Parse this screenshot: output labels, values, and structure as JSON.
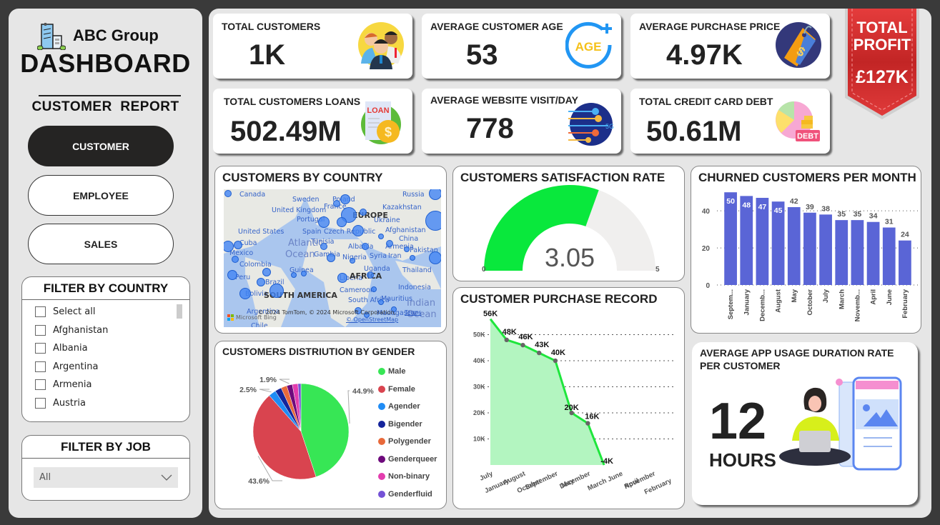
{
  "sidebar": {
    "brand": "ABC Group",
    "title": "DASHBOARD",
    "subtitle": "CUSTOMER  REPORT",
    "nav": [
      {
        "label": "CUSTOMER",
        "active": true
      },
      {
        "label": "EMPLOYEE",
        "active": false
      },
      {
        "label": "SALES",
        "active": false
      }
    ],
    "country_filter": {
      "title": "FILTER BY COUNTRY",
      "items": [
        "Select all",
        "Afghanistan",
        "Albania",
        "Argentina",
        "Armenia",
        "Austria"
      ]
    },
    "job_filter": {
      "title": "FILTER BY JOB",
      "selected": "All"
    }
  },
  "kpis": [
    {
      "label": "TOTAL CUSTOMERS",
      "value": "1K",
      "icon": "customers-group-icon"
    },
    {
      "label": "AVERAGE CUSTOMER AGE",
      "value": "53",
      "icon": "age-icon"
    },
    {
      "label": "AVERAGE PURCHASE PRICE",
      "value": "4.97K",
      "icon": "price-tag-icon"
    },
    {
      "label": "TOTAL CUSTOMERS LOANS",
      "value": "502.49M",
      "icon": "loan-icon"
    },
    {
      "label": "AVERAGE WEBSITE VISIT/DAY",
      "value": "778",
      "icon": "network-5g-icon"
    },
    {
      "label": "TOTAL CREDIT CARD DEBT",
      "value": "50.61M",
      "icon": "debt-icon"
    }
  ],
  "profit": {
    "line1": "TOTAL",
    "line2": "PROFIT",
    "value": "£127K",
    "color": "#d93232"
  },
  "map": {
    "title": "CUSTOMERS BY COUNTRY",
    "labels": [
      "Canada",
      "Russia",
      "Sweden",
      "Poland",
      "United Kingdom",
      "France",
      "Kazakhstan",
      "Portugal",
      "EUROPE",
      "Ukraine",
      "United States",
      "Spain",
      "Czech Republic",
      "Afghanistan",
      "China",
      "Cuba",
      "Tunisia",
      "Albania",
      "Armenia",
      "Pakistan",
      "Mexico",
      "Gambia",
      "Nigeria",
      "Syria",
      "Iran",
      "Colombia",
      "Uganda",
      "Thailand",
      "Guinea",
      "Liberia",
      "AFRICA",
      "Peru",
      "Brazil",
      "Indonesia",
      "Cameroon",
      "Bolivia",
      "Mauritius",
      "SOUTH AMERICA",
      "South Africa",
      "Argentina",
      "Madagascar",
      "Chile",
      "Atlantic",
      "Ocean",
      "Indian",
      "Ocean"
    ],
    "copyright": "© 2024 TomTom, © 2024 Microsoft Corporation,",
    "terms": "Terms",
    "osm": "© OpenStreetMap",
    "bing": "Microsoft Bing"
  },
  "gauge": {
    "title": "CUSTOMERS SATISFACTION RATE",
    "value": 3.05,
    "display": "3.05",
    "min": 0,
    "max": 5,
    "min_label": "0",
    "max_label": "5",
    "fill_color": "#09e83c",
    "track_color": "#f0efee"
  },
  "app_usage": {
    "title_line1": "AVERAGE  APP USAGE DURATION RATE",
    "title_line2": "PER CUSTOMER",
    "value": "12",
    "unit": "HOURS"
  },
  "chart_data": [
    {
      "type": "bar",
      "title": "CHURNED CUSTOMERS PER MONTH",
      "categories": [
        "Septem...",
        "January",
        "Decemb...",
        "August",
        "May",
        "October",
        "July",
        "March",
        "Novemb...",
        "April",
        "June",
        "February"
      ],
      "values": [
        50,
        48,
        47,
        45,
        42,
        39,
        38,
        35,
        35,
        34,
        31,
        24
      ],
      "data_labels": [
        "50",
        "48",
        "47",
        "45",
        "42",
        "39",
        "38",
        "35",
        "35",
        "34",
        "31",
        "24"
      ],
      "yticks": [
        0,
        20,
        40
      ],
      "ytick_labels": [
        "0",
        "20",
        "40"
      ],
      "ylim": [
        0,
        52
      ],
      "color": "#5a65d6",
      "xlabel": "",
      "ylabel": "",
      "grid": true
    },
    {
      "type": "area",
      "title": "CUSTOMER PURCHASE RECORD",
      "categories": [
        "July",
        "January",
        "August",
        "October",
        "September",
        "May",
        "December",
        "March",
        "June",
        "April",
        "November",
        "February"
      ],
      "values": [
        56000,
        48000,
        46000,
        43000,
        40000,
        20000,
        16000,
        -4000,
        null,
        null,
        null,
        null
      ],
      "data_labels": [
        "56K",
        "48K",
        "46K",
        "43K",
        "40K",
        "20K",
        "16K",
        "-4K"
      ],
      "yticks": [
        10000,
        20000,
        30000,
        40000,
        50000
      ],
      "ytick_labels": [
        "10K",
        "20K",
        "30K",
        "40K",
        "50K"
      ],
      "ylim": [
        0,
        57000
      ],
      "line_color": "#1ee63c",
      "fill_color": "#b3f5c0",
      "grid": true
    },
    {
      "type": "pie",
      "title": "CUSTOMERS DISTRIUTION BY GENDER",
      "slices": [
        {
          "label": "Male",
          "value": 44.9,
          "color": "#37e655"
        },
        {
          "label": "Female",
          "value": 43.6,
          "color": "#d9444f"
        },
        {
          "label": "Agender",
          "value": 2.5,
          "color": "#1f8cf5"
        },
        {
          "label": "Bigender",
          "value": 2.2,
          "color": "#14249b"
        },
        {
          "label": "Polygender",
          "value": 2.0,
          "color": "#e8693a"
        },
        {
          "label": "Genderqueer",
          "value": 1.9,
          "color": "#6e0a7c"
        },
        {
          "label": "Non-binary",
          "value": 1.9,
          "color": "#e33dae"
        },
        {
          "label": "Genderfluid",
          "value": 1.0,
          "color": "#7452d6"
        }
      ],
      "data_labels": [
        {
          "slice": "Male",
          "text": "44.9%"
        },
        {
          "slice": "Female",
          "text": "43.6%"
        },
        {
          "slice": "Agender",
          "text": "2.5%"
        },
        {
          "slice": "Genderqueer",
          "text": "1.9%"
        }
      ],
      "legend": "right"
    }
  ]
}
